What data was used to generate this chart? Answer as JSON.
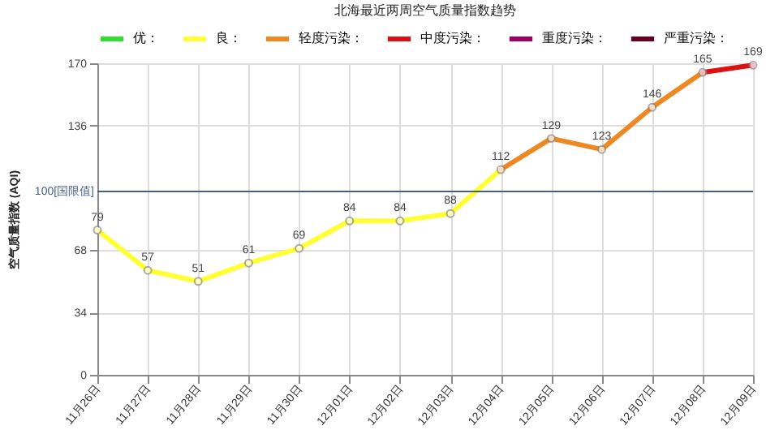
{
  "chart_data": {
    "type": "line",
    "title": "北海最近两周空气质量指数趋势",
    "ylabel": "空气质量指数 (AQI)",
    "categories": [
      "11月26日",
      "11月27日",
      "11月28日",
      "11月29日",
      "11月30日",
      "12月01日",
      "12月02日",
      "12月03日",
      "12月04日",
      "12月05日",
      "12月06日",
      "12月07日",
      "12月08日",
      "12月09日"
    ],
    "series": [
      {
        "name": "优：",
        "color": "#33dd33",
        "values": [
          null,
          null,
          null,
          null,
          null,
          null,
          null,
          null,
          null,
          null,
          null,
          null,
          null,
          null
        ]
      },
      {
        "name": "良：",
        "color": "#ffff33",
        "values": [
          79,
          57,
          51,
          61,
          69,
          84,
          84,
          88,
          112,
          null,
          null,
          null,
          null,
          null
        ],
        "value_labels": [
          "79",
          "57",
          "51",
          "61",
          "69",
          "84",
          "84",
          "88",
          "112",
          null,
          null,
          null,
          null,
          null
        ]
      },
      {
        "name": "轻度污染：",
        "color": "#ee8822",
        "values": [
          null,
          null,
          null,
          null,
          null,
          null,
          null,
          null,
          112,
          129,
          123,
          146,
          165,
          null
        ],
        "value_labels": [
          null,
          null,
          null,
          null,
          null,
          null,
          null,
          null,
          null,
          "129",
          "123",
          "146",
          "165",
          null
        ]
      },
      {
        "name": "中度污染：",
        "color": "#dd1111",
        "values": [
          null,
          null,
          null,
          null,
          null,
          null,
          null,
          null,
          null,
          null,
          null,
          null,
          165,
          169
        ],
        "value_labels": [
          null,
          null,
          null,
          null,
          null,
          null,
          null,
          null,
          null,
          null,
          null,
          null,
          null,
          "169"
        ]
      },
      {
        "name": "重度污染：",
        "color": "#990066",
        "values": [
          null,
          null,
          null,
          null,
          null,
          null,
          null,
          null,
          null,
          null,
          null,
          null,
          null,
          null
        ]
      },
      {
        "name": "严重污染：",
        "color": "#660022",
        "values": [
          null,
          null,
          null,
          null,
          null,
          null,
          null,
          null,
          null,
          null,
          null,
          null,
          null,
          null
        ]
      }
    ],
    "ylim": [
      0,
      170
    ],
    "yticks": [
      0,
      34,
      68,
      136,
      170
    ],
    "ref_lines": [
      {
        "axis": "y",
        "value": 100,
        "label": "100[国限值]",
        "color": "#445e8a"
      }
    ],
    "marker": "circle",
    "line_style": "solid",
    "grid": true,
    "legend": "top"
  }
}
